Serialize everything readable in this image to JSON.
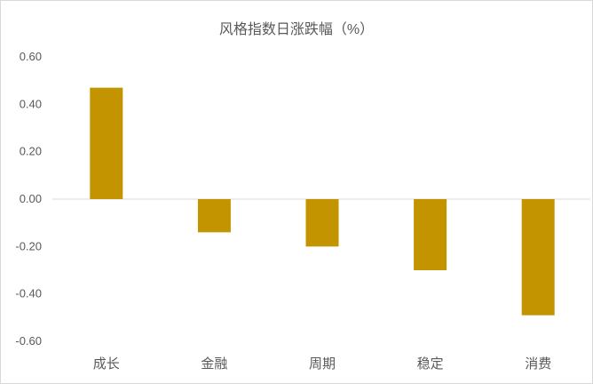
{
  "chart_data": {
    "type": "bar",
    "title": "风格指数日涨跌幅（%）",
    "categories": [
      "成长",
      "金融",
      "周期",
      "稳定",
      "消费"
    ],
    "values": [
      0.47,
      -0.14,
      -0.2,
      -0.3,
      -0.49
    ],
    "yticks": [
      "0.60",
      "0.40",
      "0.20",
      "0.00",
      "-0.20",
      "-0.40",
      "-0.60"
    ],
    "ylim": [
      -0.6,
      0.6
    ],
    "xlabel": "",
    "ylabel": "",
    "grid": false,
    "legend": "none",
    "bar_color": "#C39400",
    "axis_color": "#d9d9d9"
  }
}
